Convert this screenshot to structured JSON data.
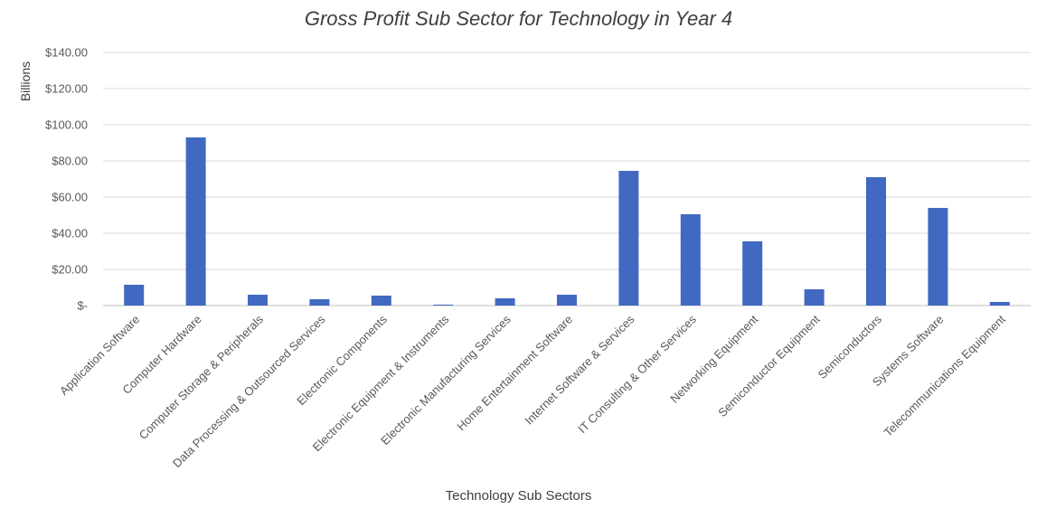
{
  "chart_data": {
    "type": "bar",
    "title": "Gross Profit Sub Sector for Technology in Year 4",
    "xlabel": "Technology Sub Sectors",
    "ylabel": "Billions",
    "ylim": [
      0,
      140
    ],
    "y_ticks": [
      0,
      20,
      40,
      60,
      80,
      100,
      120,
      140
    ],
    "y_tick_labels": [
      "$-",
      "$20.00",
      "$40.00",
      "$60.00",
      "$80.00",
      "$100.00",
      "$120.00",
      "$140.00"
    ],
    "grid": true,
    "legend": "none",
    "bar_color": "#4169C1",
    "categories": [
      "Application Software",
      "Computer Hardware",
      "Computer Storage & Peripherals",
      "Data Processing & Outsourced Services",
      "Electronic Components",
      "Electronic Equipment & Instruments",
      "Electronic Manufacturing Services",
      "Home Entertainment Software",
      "Internet Software & Services",
      "IT Consulting & Other Services",
      "Networking Equipment",
      "Semiconductor Equipment",
      "Semiconductors",
      "Systems Software",
      "Telecommunications Equipment"
    ],
    "values": [
      11.5,
      93,
      6,
      3.5,
      5.5,
      0.5,
      4,
      6,
      74.5,
      50.5,
      35.5,
      9,
      71,
      54,
      2
    ]
  }
}
